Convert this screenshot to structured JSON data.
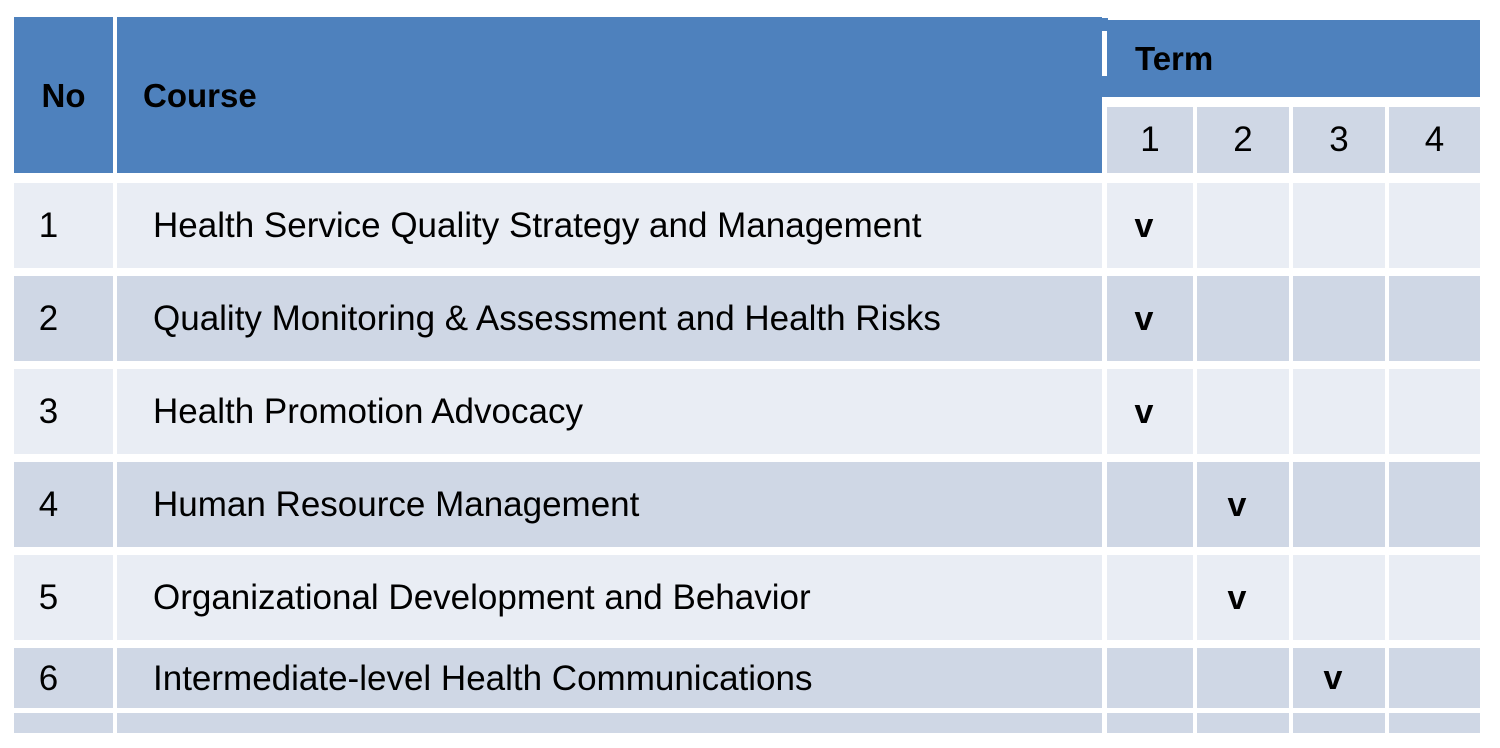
{
  "table": {
    "headers": {
      "no": "No",
      "course": "Course",
      "term": "Term",
      "term_columns": [
        "1",
        "2",
        "3",
        "4"
      ]
    },
    "rows": [
      {
        "no": "1",
        "course": "Health Service Quality Strategy and Management",
        "terms": [
          "v",
          "",
          "",
          ""
        ]
      },
      {
        "no": "2",
        "course": "Quality Monitoring & Assessment and Health Risks",
        "terms": [
          "v",
          "",
          "",
          ""
        ]
      },
      {
        "no": "3",
        "course": "Health Promotion Advocacy",
        "terms": [
          "v",
          "",
          "",
          ""
        ]
      },
      {
        "no": "4",
        "course": "Human Resource Management",
        "terms": [
          "",
          "v",
          "",
          ""
        ]
      },
      {
        "no": "5",
        "course": "Organizational Development and Behavior",
        "terms": [
          "",
          "v",
          "",
          ""
        ]
      },
      {
        "no": "6",
        "course": "Intermediate-level Health Communications",
        "terms": [
          "",
          "",
          "v",
          ""
        ]
      }
    ],
    "partial_row": {
      "no": "",
      "course": "",
      "terms": [
        "",
        "",
        "",
        ""
      ]
    }
  },
  "colors": {
    "header_blue": "#4e81bd",
    "band_dark": "#cfd7e5",
    "band_light": "#e9edf4",
    "text": "#000000",
    "background": "#ffffff"
  }
}
